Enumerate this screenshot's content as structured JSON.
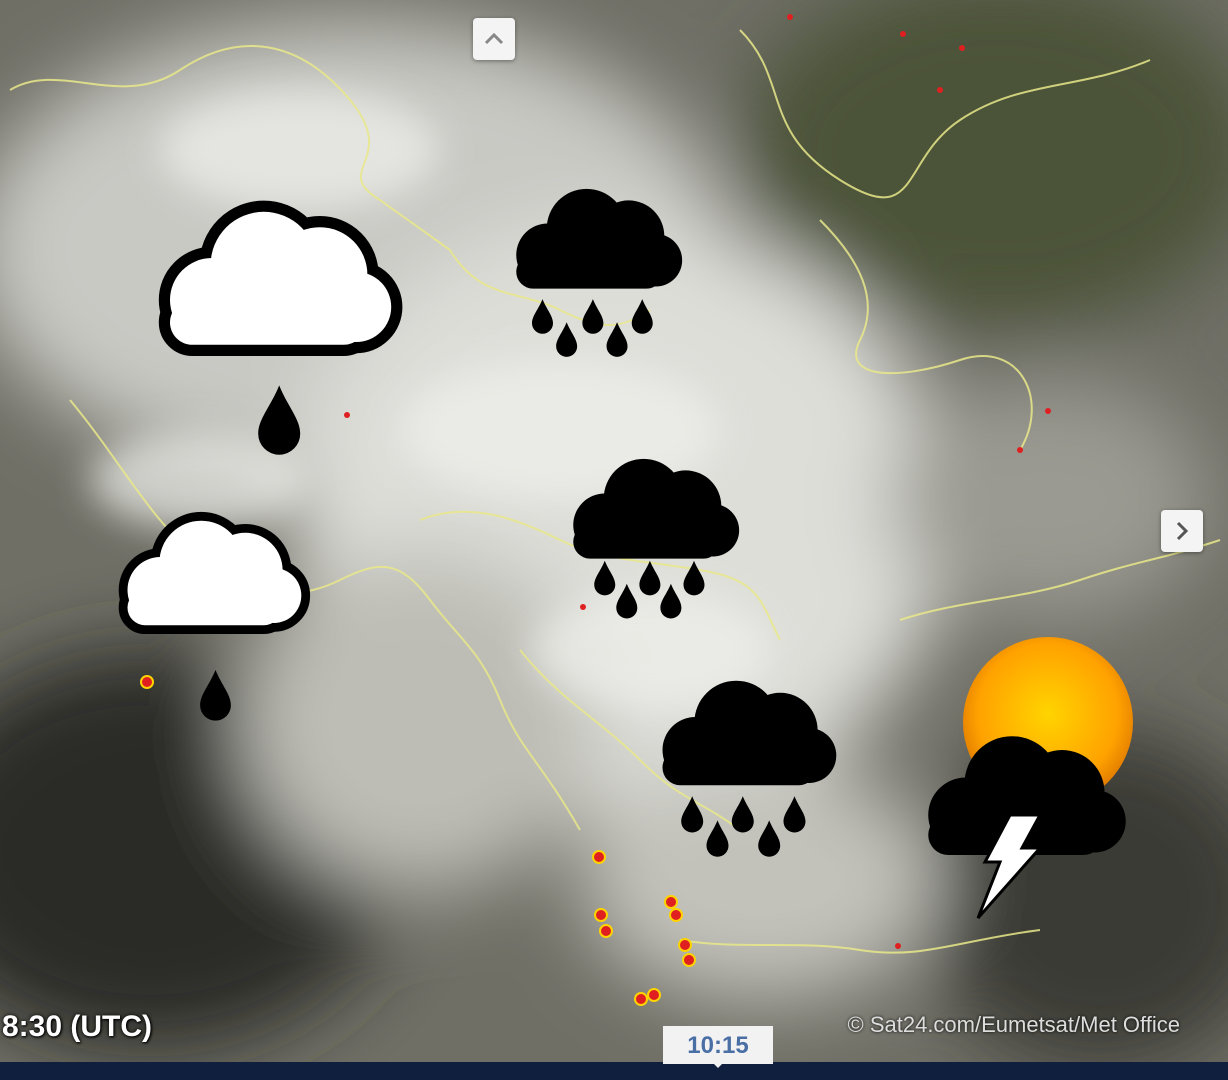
{
  "timestamp": "8:30 (UTC)",
  "copyright": "© Sat24.com/Eumetsat/Met Office",
  "timeline": {
    "current_time": "10:15"
  }
}
